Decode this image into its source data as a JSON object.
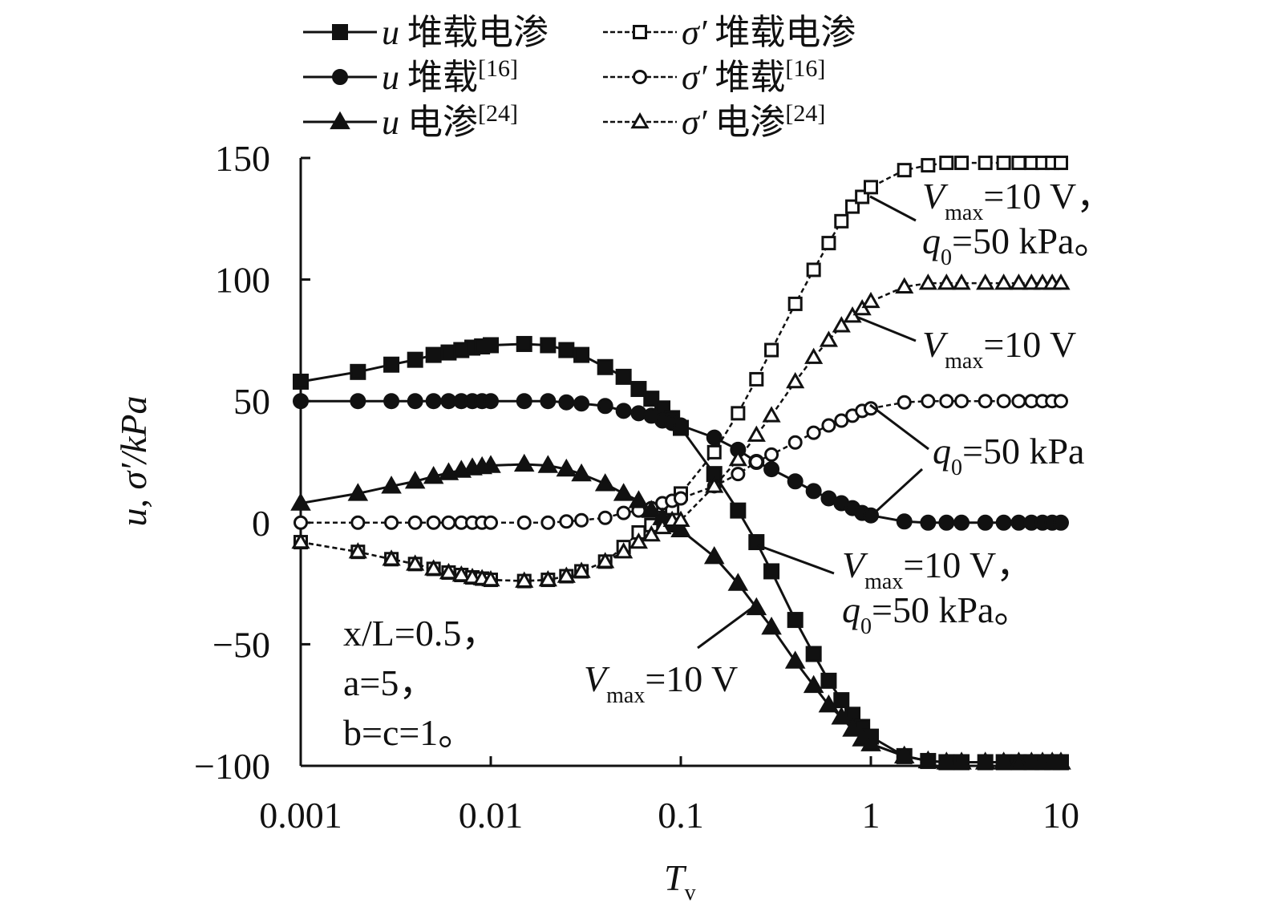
{
  "chart_data": {
    "type": "line",
    "xscale": "log",
    "xlabel": "T",
    "xlabel_sub": "v",
    "ylabel": "u, σ′/kPa",
    "xlim": [
      0.001,
      10
    ],
    "ylim": [
      -100,
      150
    ],
    "xticks": [
      "0.001",
      "0.01",
      "0.1",
      "1",
      "10"
    ],
    "yticks": [
      "150",
      "100",
      "50",
      "0",
      "−50",
      "−100"
    ],
    "ytick_values": [
      150,
      100,
      50,
      0,
      -50,
      -100
    ],
    "grid": false,
    "legend_position": "top",
    "x": [
      0.001,
      0.002,
      0.003,
      0.004,
      0.005,
      0.006,
      0.007,
      0.008,
      0.009,
      0.01,
      0.015,
      0.02,
      0.025,
      0.03,
      0.04,
      0.05,
      0.06,
      0.07,
      0.08,
      0.09,
      0.1,
      0.15,
      0.2,
      0.25,
      0.3,
      0.4,
      0.5,
      0.6,
      0.7,
      0.8,
      0.9,
      1,
      1.5,
      2,
      2.5,
      3,
      4,
      5,
      6,
      7,
      8,
      9,
      10
    ],
    "series": [
      {
        "name_var": "u",
        "name": "堆载电渗",
        "ref": "",
        "marker": "square",
        "filled": true,
        "dashed": false,
        "values": [
          58,
          62,
          65,
          67,
          69,
          70,
          71,
          72,
          72.5,
          73,
          73.5,
          73,
          71,
          69,
          64,
          60,
          55,
          51,
          47,
          43,
          39,
          20,
          5,
          -8,
          -20,
          -40,
          -54,
          -65,
          -73,
          -79,
          -84,
          -88,
          -96,
          -98,
          -98.5,
          -98.5,
          -98.5,
          -98.5,
          -98.5,
          -98.5,
          -98.5,
          -98.5,
          -98.5
        ]
      },
      {
        "name_var": "σ′",
        "name": "堆载电渗",
        "ref": "",
        "marker": "square",
        "filled": false,
        "dashed": true,
        "values": [
          -8,
          -12,
          -15,
          -17,
          -19,
          -20.5,
          -21.5,
          -22.5,
          -23,
          -23.5,
          -24,
          -23.5,
          -22,
          -20,
          -16,
          -10,
          -4,
          -1,
          2,
          6,
          12,
          29,
          45,
          59,
          71,
          90,
          104,
          115,
          124,
          130,
          134,
          138,
          145,
          147,
          148,
          148,
          148,
          148,
          148,
          148,
          148,
          148,
          148
        ]
      },
      {
        "name_var": "u",
        "name": "堆载",
        "ref": "[16]",
        "marker": "circle",
        "filled": true,
        "dashed": false,
        "values": [
          50,
          50,
          50,
          50,
          50,
          50,
          50,
          50,
          50,
          50,
          50,
          50,
          49.5,
          49,
          48,
          46,
          45,
          44,
          42,
          41,
          40,
          35,
          30,
          25,
          22,
          17,
          13,
          10,
          8,
          6,
          4,
          3,
          0.5,
          0,
          0,
          0,
          0,
          0,
          0,
          0,
          0,
          0,
          0
        ]
      },
      {
        "name_var": "σ′",
        "name": "堆载",
        "ref": "[16]",
        "marker": "circle",
        "filled": false,
        "dashed": true,
        "values": [
          0,
          0,
          0,
          0,
          0,
          0,
          0,
          0,
          0,
          0,
          0,
          0,
          0.5,
          1,
          2,
          4,
          5,
          6,
          8,
          9,
          10,
          15,
          20,
          25,
          28,
          33,
          37,
          40,
          42,
          44,
          46,
          47,
          49.5,
          50,
          50,
          50,
          50,
          50,
          50,
          50,
          50,
          50,
          50
        ]
      },
      {
        "name_var": "u",
        "name": "电渗",
        "ref": "[24]",
        "marker": "triangle",
        "filled": true,
        "dashed": false,
        "values": [
          8,
          12,
          15,
          17,
          19,
          20.5,
          21.5,
          22.5,
          23,
          23.5,
          24,
          23.5,
          22,
          20,
          16,
          12,
          9,
          5,
          2,
          -1,
          -3,
          -14,
          -25,
          -35,
          -43,
          -57,
          -67,
          -75,
          -80,
          -85,
          -89,
          -91,
          -96,
          -98,
          -98.5,
          -98.5,
          -98.5,
          -98.5,
          -98.5,
          -98.5,
          -98.5,
          -98.5,
          -98.5
        ]
      },
      {
        "name_var": "σ′",
        "name": "电渗",
        "ref": "[24]",
        "marker": "triangle",
        "filled": false,
        "dashed": true,
        "values": [
          -8,
          -12,
          -15,
          -17,
          -19,
          -20.5,
          -21.5,
          -22.5,
          -23,
          -23.5,
          -24,
          -23.5,
          -22,
          -20,
          -16,
          -12,
          -8,
          -5,
          -2,
          1,
          1,
          15,
          26,
          36,
          44,
          58,
          68,
          75,
          81,
          85,
          88,
          91,
          97,
          98.5,
          98.5,
          98.5,
          98.5,
          98.5,
          98.5,
          98.5,
          98.5,
          98.5,
          98.5
        ]
      }
    ],
    "annotations": {
      "params": [
        "x/L=0.5，",
        "a=5，",
        "b=c=1。"
      ],
      "a1": {
        "l1": "V",
        "l1sub": "max",
        "l1rest": "=10 V，",
        "l2": "q",
        "l2sub": "0",
        "l2rest": "=50 kPa。"
      },
      "a2": {
        "l1": "V",
        "l1sub": "max",
        "l1rest": "=10 V"
      },
      "a3": {
        "l1": "q",
        "l1sub": "0",
        "l1rest": "=50 kPa"
      },
      "a4": {
        "l1": "V",
        "l1sub": "max",
        "l1rest": "=10 V，",
        "l2": "q",
        "l2sub": "0",
        "l2rest": "=50 kPa。"
      },
      "a5": {
        "l1": "V",
        "l1sub": "max",
        "l1rest": "=10 V"
      }
    }
  }
}
